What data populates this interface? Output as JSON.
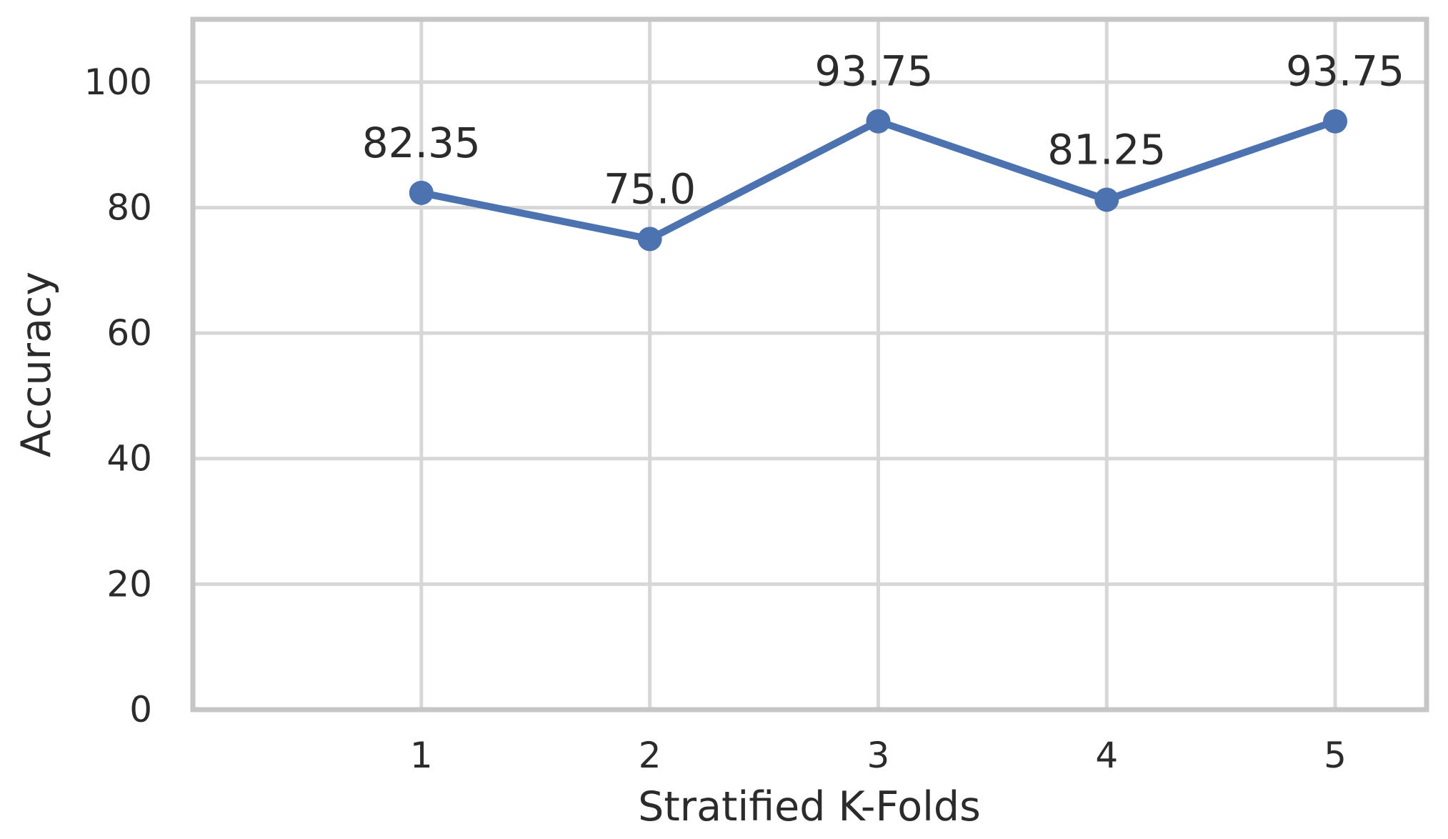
{
  "figure": {
    "background": "#ffffff"
  },
  "chart_data": {
    "type": "line",
    "title": "",
    "xlabel": "Stratified K-Folds",
    "ylabel": "Accuracy",
    "x": [
      1,
      2,
      3,
      4,
      5
    ],
    "values": [
      82.35,
      75.0,
      93.75,
      81.25,
      93.75
    ],
    "point_labels": [
      "82.35",
      "75.0",
      "93.75",
      "81.25",
      "93.75"
    ],
    "point_label_dx": [
      0,
      0,
      -6,
      0,
      14
    ],
    "x_tick_labels": [
      "1",
      "2",
      "3",
      "4",
      "5"
    ],
    "x_tick_values": [
      1,
      2,
      3,
      4,
      5
    ],
    "y_tick_labels": [
      "0",
      "20",
      "40",
      "60",
      "80",
      "100"
    ],
    "y_tick_values": [
      0,
      20,
      40,
      60,
      80,
      100
    ],
    "xlim": [
      0,
      5.4
    ],
    "ylim": [
      0,
      110
    ],
    "grid": true,
    "legend": "none",
    "marker": "circle",
    "colors": {
      "line": "#4c72b0",
      "marker": "#4c72b0",
      "grid": "#d7d7d7",
      "spine": "#c6c6c6",
      "text": "#2b2b2b",
      "background": "#ffffff"
    }
  }
}
